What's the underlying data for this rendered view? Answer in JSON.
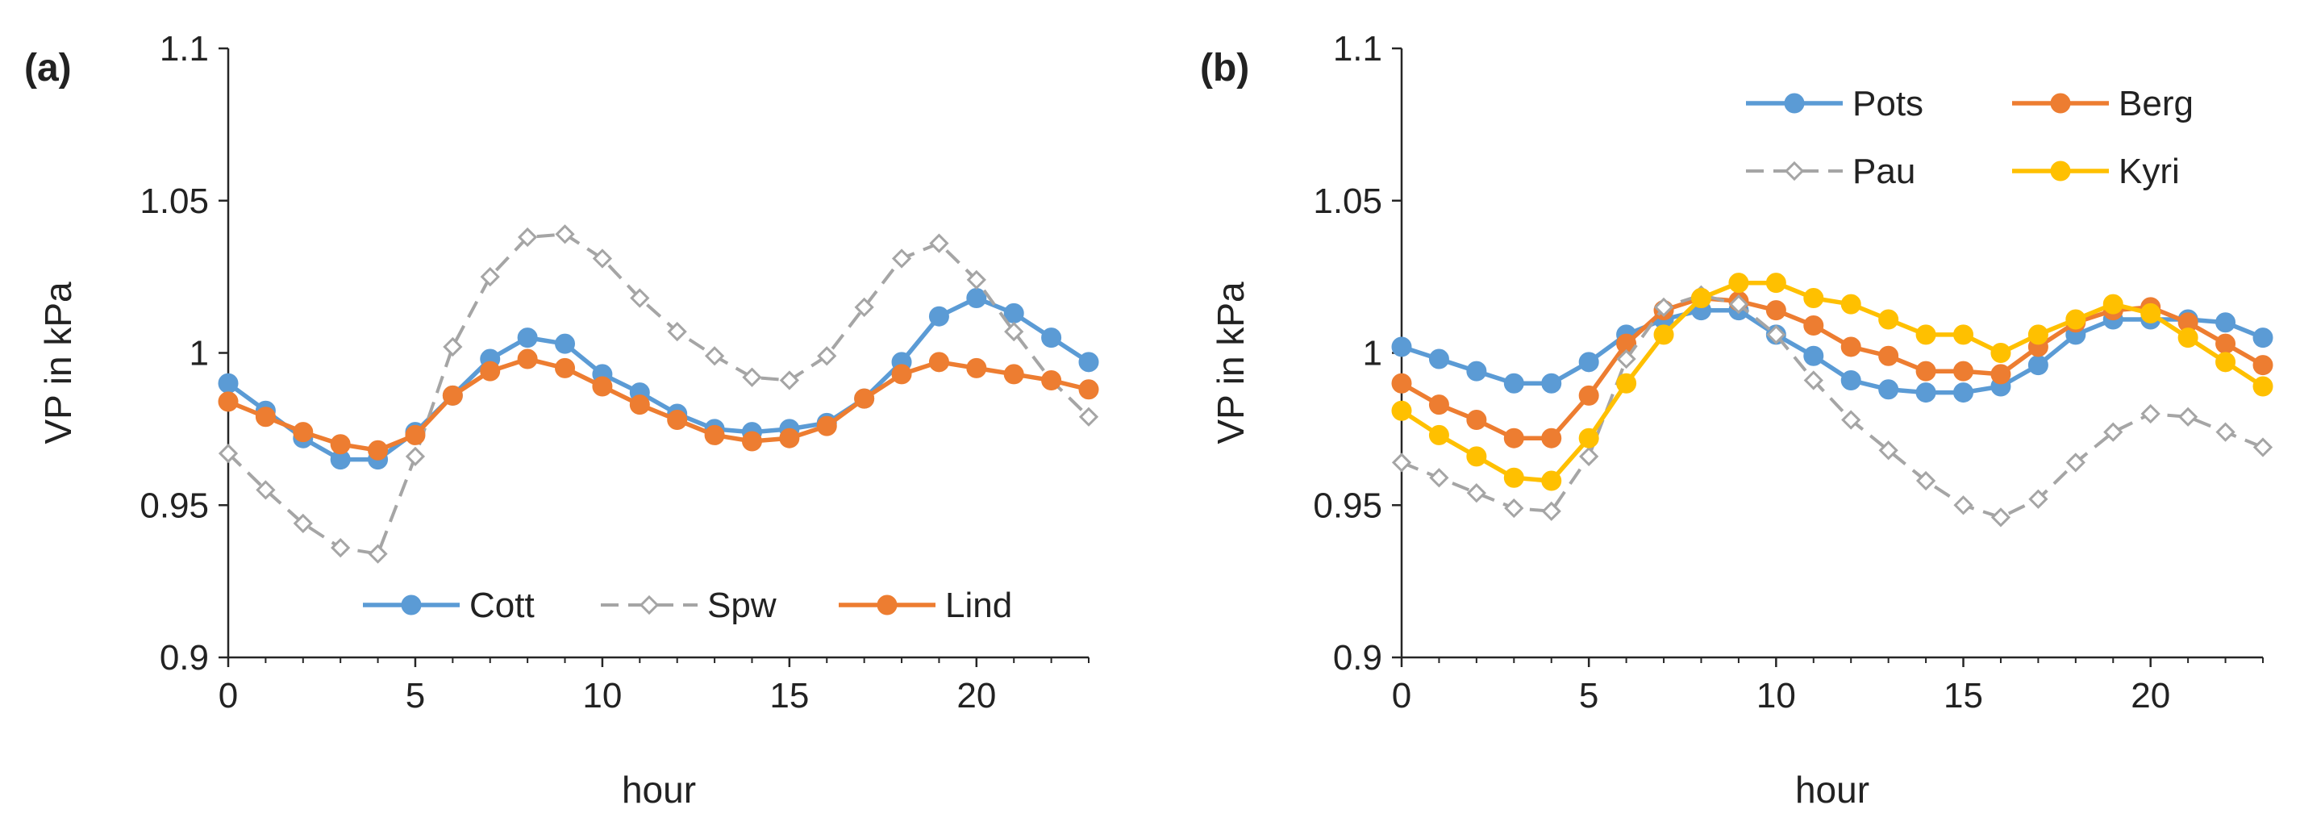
{
  "chart_data": [
    {
      "type": "line",
      "panel_label": "(a)",
      "xlabel": "hour",
      "ylabel": "VP in kPa",
      "xlim": [
        0,
        23
      ],
      "ylim": [
        0.9,
        1.1
      ],
      "xticks": [
        0,
        5,
        10,
        15,
        20
      ],
      "xtick_labels": [
        "0",
        "5",
        "10",
        "15",
        "20"
      ],
      "yticks": [
        0.9,
        0.95,
        1.0,
        1.05,
        1.1
      ],
      "ytick_labels": [
        "0.9",
        "0.95",
        "1",
        "1.05",
        "1.1"
      ],
      "grid": false,
      "legend_position": "bottom-center",
      "x": [
        0,
        1,
        2,
        3,
        4,
        5,
        6,
        7,
        8,
        9,
        10,
        11,
        12,
        13,
        14,
        15,
        16,
        17,
        18,
        19,
        20,
        21,
        22,
        23
      ],
      "series": [
        {
          "name": "Cott",
          "color": "#5b9bd5",
          "style": "solid",
          "marker": "circle",
          "values": [
            0.99,
            0.981,
            0.972,
            0.965,
            0.965,
            0.974,
            0.986,
            0.998,
            1.005,
            1.003,
            0.993,
            0.987,
            0.98,
            0.975,
            0.974,
            0.975,
            0.977,
            0.985,
            0.997,
            1.012,
            1.018,
            1.013,
            1.005,
            0.997
          ]
        },
        {
          "name": "Spw",
          "color": "#a5a5a5",
          "style": "dashed",
          "marker": "diamond",
          "values": [
            0.967,
            0.955,
            0.944,
            0.936,
            0.934,
            0.966,
            1.002,
            1.025,
            1.038,
            1.039,
            1.031,
            1.018,
            1.007,
            0.999,
            0.992,
            0.991,
            0.999,
            1.015,
            1.031,
            1.036,
            1.024,
            1.007,
            0.991,
            0.979
          ]
        },
        {
          "name": "Lind",
          "color": "#ed7d31",
          "style": "solid",
          "marker": "circle",
          "values": [
            0.984,
            0.979,
            0.974,
            0.97,
            0.968,
            0.973,
            0.986,
            0.994,
            0.998,
            0.995,
            0.989,
            0.983,
            0.978,
            0.973,
            0.971,
            0.972,
            0.976,
            0.985,
            0.993,
            0.997,
            0.995,
            0.993,
            0.991,
            0.988
          ]
        }
      ]
    },
    {
      "type": "line",
      "panel_label": "(b)",
      "xlabel": "hour",
      "ylabel": "VP in kPa",
      "xlim": [
        0,
        23
      ],
      "ylim": [
        0.9,
        1.1
      ],
      "xticks": [
        0,
        5,
        10,
        15,
        20
      ],
      "xtick_labels": [
        "0",
        "5",
        "10",
        "15",
        "20"
      ],
      "yticks": [
        0.9,
        0.95,
        1.0,
        1.05,
        1.1
      ],
      "ytick_labels": [
        "0.9",
        "0.95",
        "1",
        "1.05",
        "1.1"
      ],
      "grid": false,
      "legend_position": "top-right",
      "x": [
        0,
        1,
        2,
        3,
        4,
        5,
        6,
        7,
        8,
        9,
        10,
        11,
        12,
        13,
        14,
        15,
        16,
        17,
        18,
        19,
        20,
        21,
        22,
        23
      ],
      "series": [
        {
          "name": "Pots",
          "color": "#5b9bd5",
          "style": "solid",
          "marker": "circle",
          "values": [
            1.002,
            0.998,
            0.994,
            0.99,
            0.99,
            0.997,
            1.006,
            1.011,
            1.014,
            1.014,
            1.006,
            0.999,
            0.991,
            0.988,
            0.987,
            0.987,
            0.989,
            0.996,
            1.006,
            1.011,
            1.011,
            1.011,
            1.01,
            1.005
          ]
        },
        {
          "name": "Berg",
          "color": "#ed7d31",
          "style": "solid",
          "marker": "circle",
          "values": [
            0.99,
            0.983,
            0.978,
            0.972,
            0.972,
            0.986,
            1.003,
            1.014,
            1.018,
            1.017,
            1.014,
            1.009,
            1.002,
            0.999,
            0.994,
            0.994,
            0.993,
            1.002,
            1.01,
            1.014,
            1.015,
            1.01,
            1.003,
            0.996
          ]
        },
        {
          "name": "Pau",
          "color": "#a5a5a5",
          "style": "dashed",
          "marker": "diamond",
          "values": [
            0.964,
            0.959,
            0.954,
            0.949,
            0.948,
            0.966,
            0.998,
            1.015,
            1.019,
            1.016,
            1.006,
            0.991,
            0.978,
            0.968,
            0.958,
            0.95,
            0.946,
            0.952,
            0.964,
            0.974,
            0.98,
            0.979,
            0.974,
            0.969
          ]
        },
        {
          "name": "Kyri",
          "color": "#ffc000",
          "style": "solid",
          "marker": "circle",
          "values": [
            0.981,
            0.973,
            0.966,
            0.959,
            0.958,
            0.972,
            0.99,
            1.006,
            1.018,
            1.023,
            1.023,
            1.018,
            1.016,
            1.011,
            1.006,
            1.006,
            1.0,
            1.006,
            1.011,
            1.016,
            1.013,
            1.005,
            0.997,
            0.989
          ]
        }
      ]
    }
  ]
}
